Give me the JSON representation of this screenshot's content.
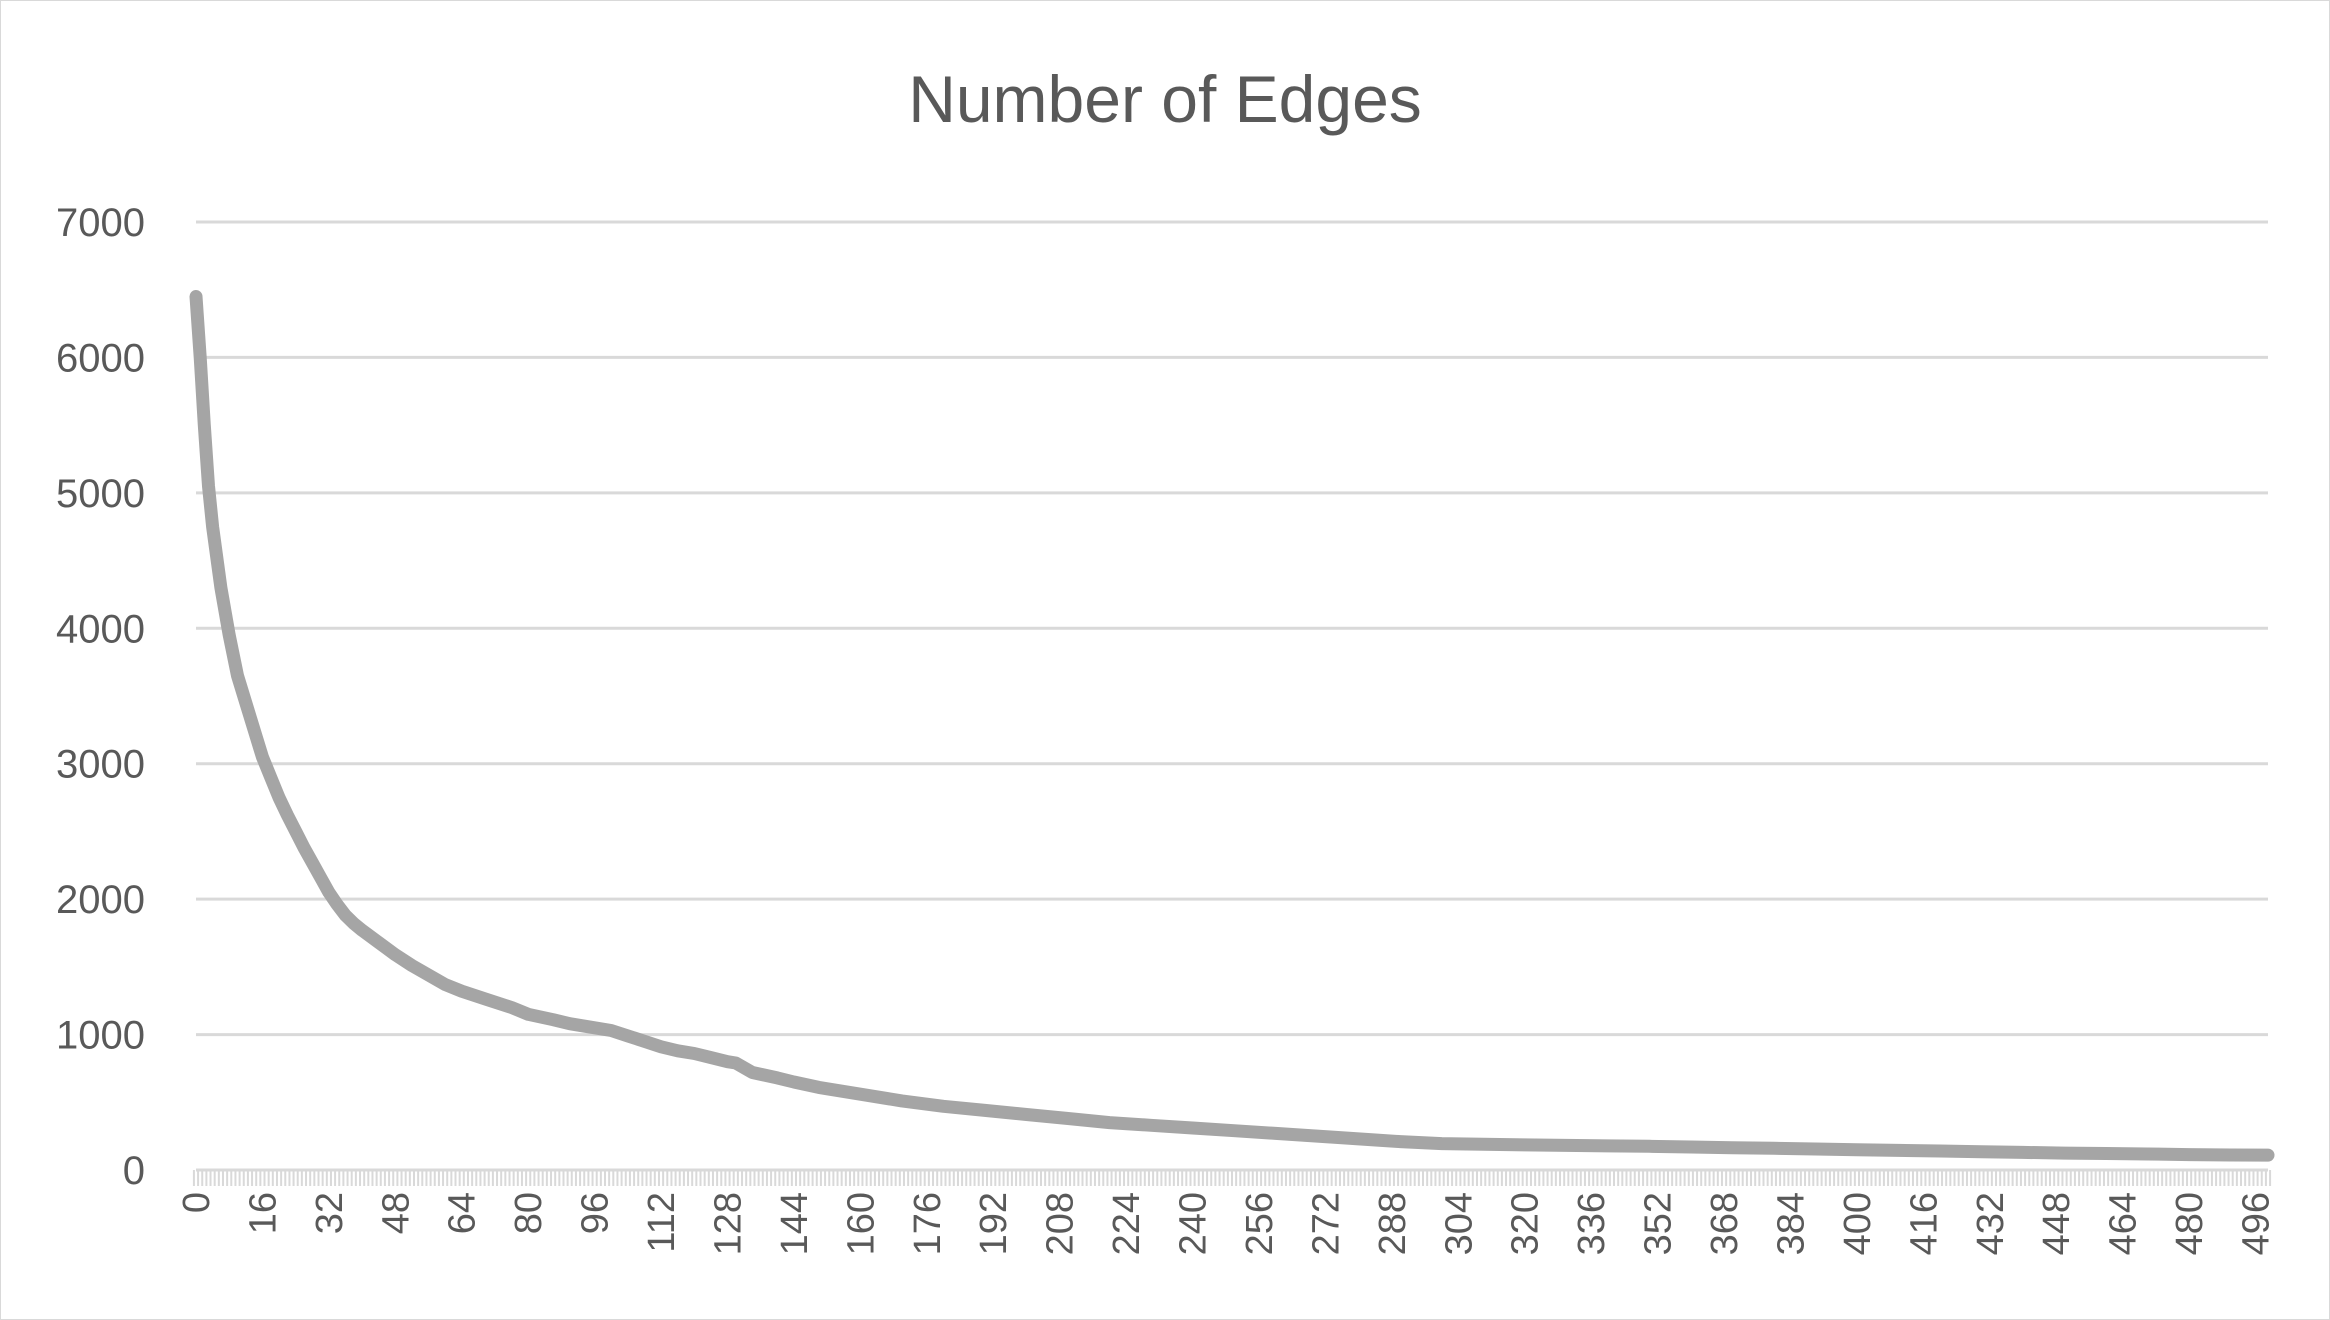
{
  "chart_data": {
    "type": "line",
    "title": "Number of Edges",
    "xlabel": "",
    "ylabel": "",
    "ylim": [
      0,
      7000
    ],
    "xlim": [
      0,
      499
    ],
    "yticks": [
      0,
      1000,
      2000,
      3000,
      4000,
      5000,
      6000,
      7000
    ],
    "xticks": [
      0,
      16,
      32,
      48,
      64,
      80,
      96,
      112,
      128,
      144,
      160,
      176,
      192,
      208,
      224,
      240,
      256,
      272,
      288,
      304,
      320,
      336,
      352,
      368,
      384,
      400,
      416,
      432,
      448,
      464,
      480,
      496
    ],
    "grid": true,
    "legend": "none",
    "series": [
      {
        "name": "",
        "color": "#a5a5a5",
        "x": [
          0,
          1,
          2,
          3,
          4,
          6,
          8,
          10,
          12,
          14,
          16,
          18,
          20,
          22,
          24,
          26,
          28,
          30,
          32,
          34,
          36,
          38,
          40,
          44,
          48,
          52,
          56,
          60,
          64,
          70,
          76,
          80,
          86,
          90,
          96,
          100,
          104,
          108,
          112,
          116,
          120,
          124,
          128,
          130,
          134,
          140,
          144,
          150,
          160,
          170,
          180,
          190,
          200,
          210,
          220,
          230,
          240,
          250,
          260,
          270,
          280,
          290,
          300,
          310,
          320,
          330,
          340,
          350,
          360,
          370,
          380,
          390,
          400,
          410,
          420,
          430,
          440,
          450,
          460,
          470,
          480,
          490,
          499
        ],
        "y": [
          6450,
          6000,
          5500,
          5050,
          4750,
          4300,
          3950,
          3650,
          3450,
          3250,
          3050,
          2900,
          2750,
          2620,
          2500,
          2380,
          2270,
          2160,
          2050,
          1960,
          1880,
          1820,
          1770,
          1680,
          1590,
          1510,
          1440,
          1370,
          1320,
          1260,
          1200,
          1150,
          1110,
          1080,
          1050,
          1030,
          990,
          950,
          910,
          880,
          860,
          830,
          800,
          790,
          720,
          680,
          650,
          610,
          560,
          510,
          470,
          440,
          410,
          380,
          350,
          330,
          310,
          290,
          270,
          250,
          230,
          210,
          195,
          190,
          185,
          182,
          178,
          175,
          170,
          165,
          160,
          155,
          150,
          145,
          140,
          135,
          130,
          125,
          122,
          118,
          114,
          111,
          110
        ]
      }
    ]
  }
}
